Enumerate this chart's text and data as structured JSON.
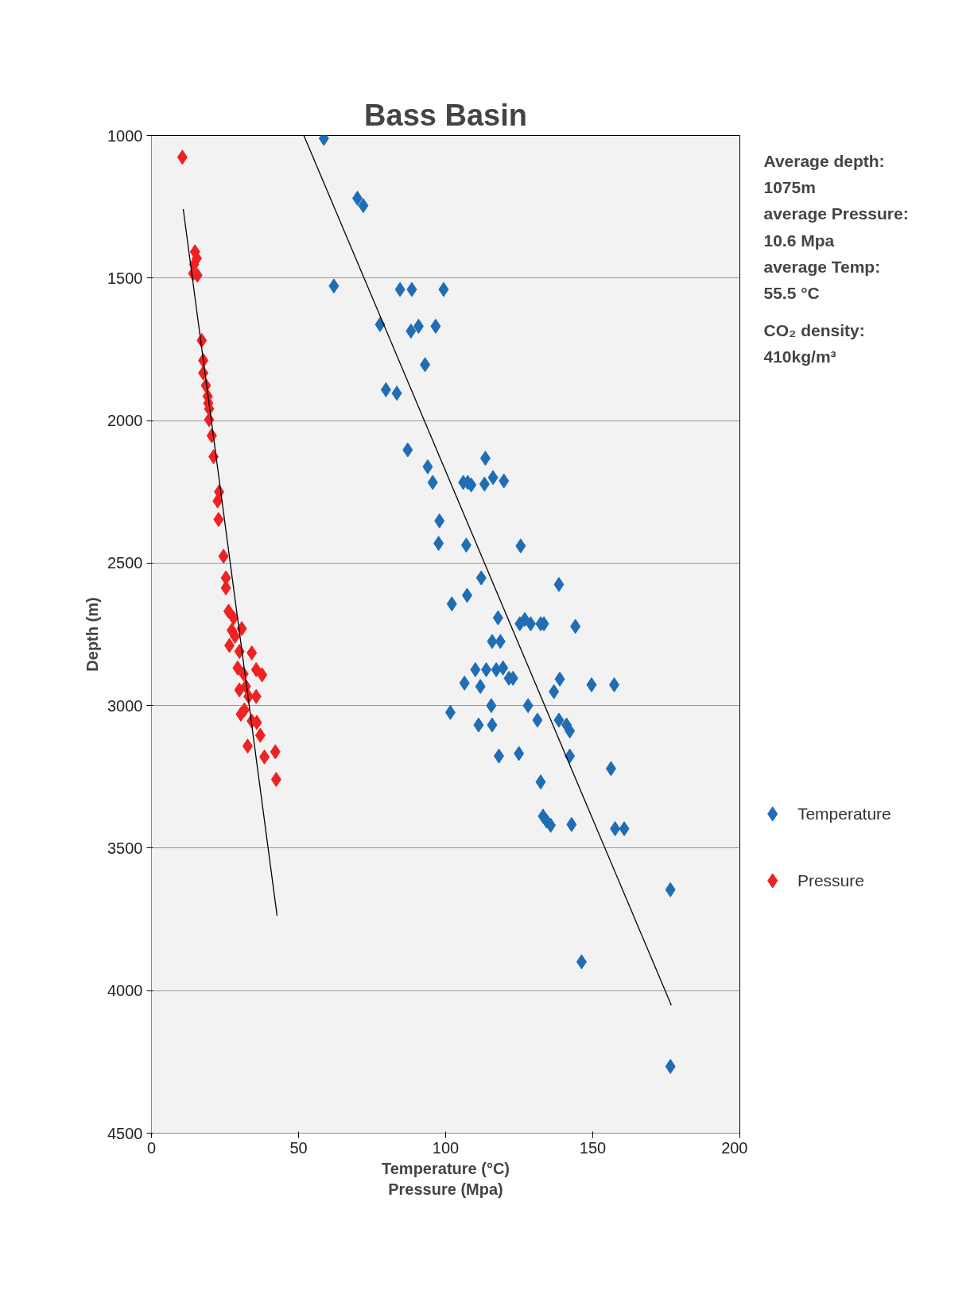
{
  "chart_data": {
    "type": "scatter",
    "title": "Bass Basin",
    "xlabel": "Temperature (°C)\nPressure (Mpa)",
    "ylabel": "Depth (m)",
    "xlim": [
      0,
      200
    ],
    "xticks": [
      0,
      50,
      100,
      150,
      200
    ],
    "ylim": [
      4500,
      1000
    ],
    "yticks": [
      1000,
      1500,
      2000,
      2500,
      3000,
      3500,
      4000,
      4500
    ],
    "grid": "y",
    "legend": "right",
    "annotations": [
      "Average depth:\n1075m\naverage Pressure:\n10.6 Mpa\naverage Temp:\n55.5 °C",
      "CO₂ density:\n410kg/m³"
    ],
    "series": [
      {
        "name": "Temperature",
        "color": "#1f6db5",
        "marker": "diamond",
        "x": [
          58.6,
          70.0,
          72.0,
          62.0,
          84.5,
          88.5,
          99.3,
          77.7,
          88.2,
          90.8,
          96.6,
          93.0,
          79.7,
          83.4,
          87.1,
          93.9,
          95.6,
          106.0,
          107.5,
          108.7,
          113.2,
          113.5,
          116.1,
          119.8,
          97.9,
          97.6,
          107.0,
          125.5,
          112.1,
          138.5,
          107.3,
          102.1,
          117.8,
          125.2,
          126.9,
          128.9,
          132.3,
          133.4,
          144.1,
          115.8,
          118.6,
          110.1,
          113.8,
          117.2,
          119.5,
          121.5,
          122.9,
          106.4,
          111.8,
          138.8,
          149.6,
          157.3,
          115.5,
          128.0,
          136.8,
          101.6,
          111.2,
          115.8,
          131.2,
          138.5,
          141.1,
          142.2,
          118.1,
          124.9,
          142.2,
          156.2,
          132.3,
          133.1,
          134.3,
          135.7,
          142.8,
          157.6,
          160.7,
          176.4,
          146.2,
          176.4
        ],
        "values": [
          1010,
          1220,
          1246,
          1528,
          1540,
          1540,
          1540,
          1663,
          1686,
          1669,
          1669,
          1804,
          1892,
          1904,
          2103,
          2162,
          2217,
          2217,
          2217,
          2226,
          2223,
          2132,
          2200,
          2212,
          2352,
          2431,
          2437,
          2440,
          2552,
          2575,
          2613,
          2643,
          2692,
          2713,
          2698,
          2713,
          2713,
          2713,
          2722,
          2775,
          2775,
          2874,
          2874,
          2874,
          2868,
          2904,
          2904,
          2921,
          2933,
          2907,
          2927,
          2927,
          3000,
          3000,
          2951,
          3024,
          3068,
          3068,
          3051,
          3051,
          3068,
          3089,
          3177,
          3168,
          3177,
          3221,
          3268,
          3388,
          3405,
          3420,
          3417,
          3432,
          3432,
          3646,
          3899,
          4266
        ]
      },
      {
        "name": "Pressure",
        "color": "#ee2222",
        "marker": "diamond",
        "x": [
          10.5,
          14.8,
          15.4,
          14.5,
          15.6,
          14.2,
          17.1,
          17.6,
          17.6,
          18.5,
          19.1,
          19.3,
          19.6,
          19.6,
          20.5,
          21.1,
          23.0,
          22.5,
          22.8,
          24.5,
          25.3,
          25.3,
          26.2,
          27.9,
          27.3,
          30.7,
          26.5,
          28.4,
          29.9,
          34.1,
          29.3,
          31.3,
          35.6,
          37.6,
          32.1,
          33.0,
          35.6,
          29.9,
          31.6,
          30.4,
          34.1,
          35.8,
          37.0,
          32.7,
          38.4,
          42.1,
          42.4
        ],
        "values": [
          1076,
          1408,
          1431,
          1452,
          1490,
          1484,
          1719,
          1789,
          1833,
          1877,
          1915,
          1939,
          1959,
          1997,
          2053,
          2127,
          2250,
          2282,
          2347,
          2476,
          2552,
          2587,
          2669,
          2692,
          2736,
          2730,
          2789,
          2757,
          2810,
          2815,
          2868,
          2889,
          2874,
          2892,
          2933,
          2968,
          2968,
          2945,
          3015,
          3030,
          3054,
          3059,
          3104,
          3142,
          3180,
          3162,
          3259
        ]
      },
      {
        "type": "line",
        "color": "#000000",
        "x": [
          51.8,
          176.7
        ],
        "values": [
          1000,
          4051
        ]
      },
      {
        "type": "line",
        "color": "#000000",
        "x": [
          10.8,
          42.7
        ],
        "values": [
          1258,
          3737
        ]
      }
    ]
  }
}
